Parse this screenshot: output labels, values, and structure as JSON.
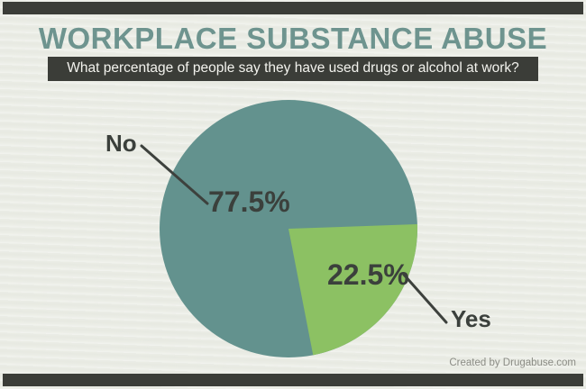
{
  "poster": {
    "title": "WORKPLACE SUBSTANCE ABUSE",
    "subtitle": "What percentage of people say they have used drugs or alcohol at work?",
    "credit": "Created by Drugabuse.com"
  },
  "colors": {
    "background": "#ebede6",
    "accent_bar": "#3b3d38",
    "title_text": "#6e948f",
    "subtitle_bg": "#3b3d38",
    "subtitle_text": "#f3f3ee",
    "callout_text": "#3b403c",
    "leader_line": "#3d413d",
    "credit_text": "#8b8c85"
  },
  "chart_data": {
    "type": "pie",
    "title": "WORKPLACE SUBSTANCE ABUSE",
    "question": "What percentage of people say they have used drugs or alcohol at work?",
    "slices": [
      {
        "label": "No",
        "value": 77.5,
        "display": "77.5%",
        "color": "#63928e"
      },
      {
        "label": "Yes",
        "value": 22.5,
        "display": "22.5%",
        "color": "#8cc163"
      }
    ],
    "start_angle_deg": -2,
    "legend_position": "callout-labels",
    "value_suffix": "%"
  }
}
